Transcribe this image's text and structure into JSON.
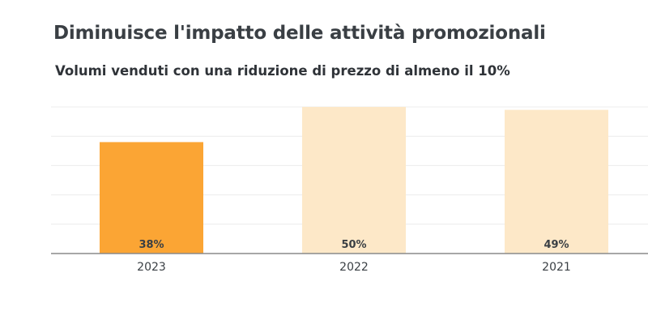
{
  "chart_data": {
    "type": "bar",
    "title": "Diminuisce l'impatto delle attività promozionali",
    "subtitle": "Volumi venduti con una riduzione di prezzo di almeno il 10%",
    "categories": [
      "2023",
      "2022",
      "2021"
    ],
    "values": [
      38,
      50,
      49
    ],
    "value_labels": [
      "38%",
      "50%",
      "49%"
    ],
    "colors": [
      "#fba534",
      "#fde8c8",
      "#fde8c8"
    ],
    "xlabel": "",
    "ylabel": "",
    "ylim": [
      0,
      50
    ],
    "grid": true,
    "legend": "none"
  }
}
